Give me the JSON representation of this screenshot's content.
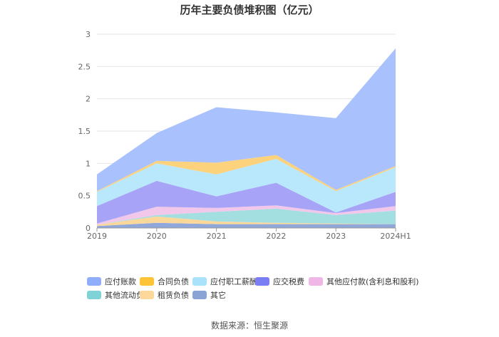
{
  "chart_data": {
    "type": "area",
    "stacked": true,
    "title": "历年主要负债堆积图（亿元）",
    "categories": [
      "2019",
      "2020",
      "2021",
      "2022",
      "2023",
      "2024H1"
    ],
    "ylim": [
      0,
      3
    ],
    "yticks": [
      "0",
      "0.5",
      "1",
      "1.5",
      "2",
      "2.5",
      "3"
    ],
    "grid": true,
    "legend_position": "bottom",
    "series": [
      {
        "name": "其它",
        "color": "#8fa8d9",
        "values": [
          0.03,
          0.08,
          0.06,
          0.06,
          0.06,
          0.06
        ]
      },
      {
        "name": "租赁负债",
        "color": "#fbd89a",
        "values": [
          0.02,
          0.1,
          0.04,
          0.02,
          0.01,
          0.0
        ]
      },
      {
        "name": "其他流动负债",
        "color": "#a3dfe0",
        "values": [
          0.0,
          0.02,
          0.15,
          0.22,
          0.13,
          0.21
        ]
      },
      {
        "name": "其他应付款(含利息和股利)",
        "color": "#f2c8ea",
        "values": [
          0.02,
          0.13,
          0.06,
          0.05,
          0.03,
          0.07
        ]
      },
      {
        "name": "应交税费",
        "color": "#a7a4f7",
        "values": [
          0.27,
          0.4,
          0.18,
          0.35,
          0.01,
          0.22
        ]
      },
      {
        "name": "应付职工薪酬",
        "color": "#b9e7fb",
        "values": [
          0.22,
          0.27,
          0.34,
          0.37,
          0.33,
          0.38
        ]
      },
      {
        "name": "合同负债",
        "color": "#fdd27c",
        "values": [
          0.01,
          0.04,
          0.18,
          0.06,
          0.02,
          0.02
        ]
      },
      {
        "name": "应付账款",
        "color": "#a9c1fc",
        "values": [
          0.26,
          0.43,
          0.86,
          0.66,
          1.11,
          1.82
        ]
      }
    ]
  },
  "legend": {
    "items": [
      {
        "label": "应付账款",
        "color": "#8fadfb"
      },
      {
        "label": "合同负债",
        "color": "#fdc437"
      },
      {
        "label": "应付职工薪酬",
        "color": "#abe2fb"
      },
      {
        "label": "应交税费",
        "color": "#7b7ef2"
      },
      {
        "label": "其他应付款(含利息和股利)",
        "color": "#efb6e6"
      },
      {
        "label": "其他流动负债",
        "color": "#7fd3d6"
      },
      {
        "label": "租赁负债",
        "color": "#fcd99a"
      },
      {
        "label": "其它",
        "color": "#8ba4d6"
      }
    ]
  },
  "source": "数据来源：恒生聚源"
}
